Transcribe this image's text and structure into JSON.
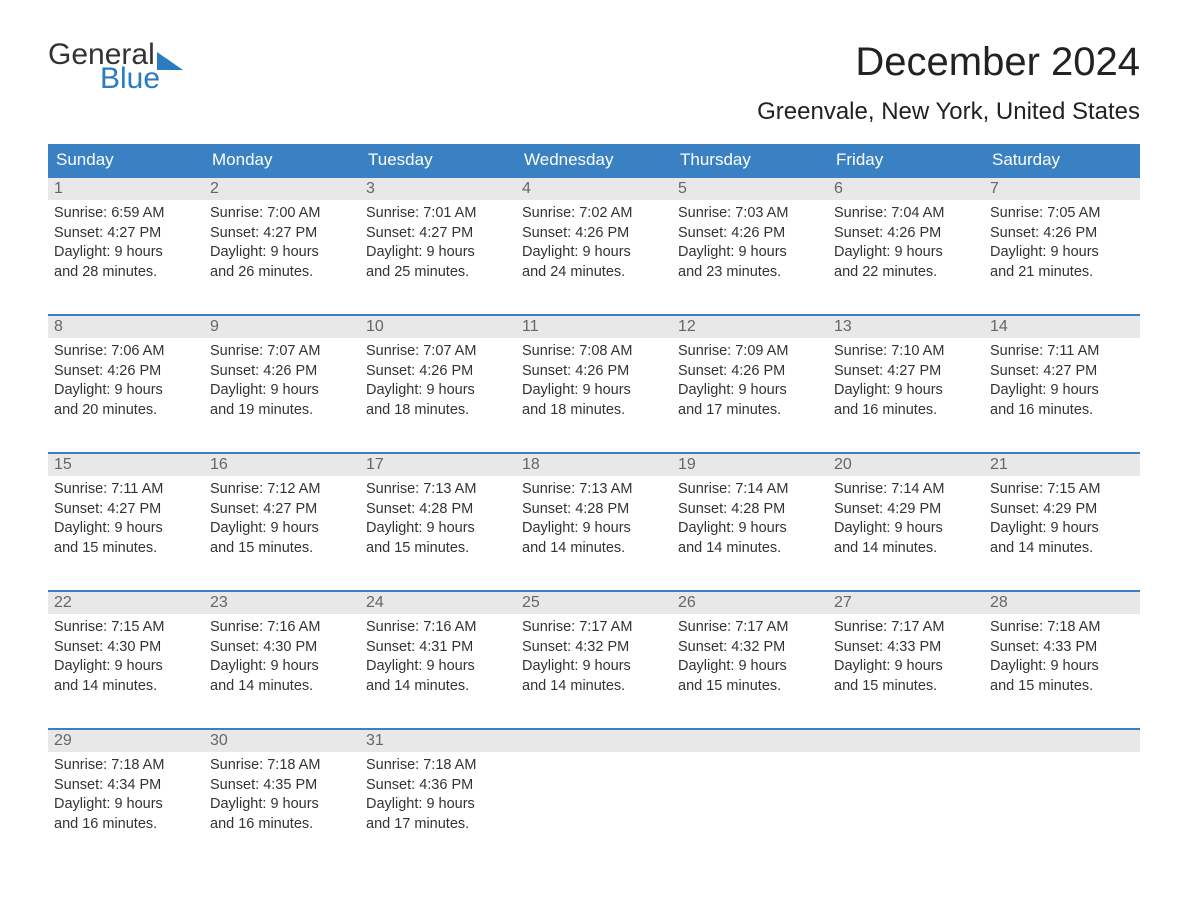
{
  "logo": {
    "word1": "General",
    "word2": "Blue",
    "flag_color": "#2a7bbf"
  },
  "title": "December 2024",
  "subtitle": "Greenvale, New York, United States",
  "colors": {
    "header_bg": "#3a81c4",
    "header_text": "#ffffff",
    "daynum_bg": "#e8e8e8",
    "daynum_text": "#666666",
    "week_border": "#3a81c4",
    "body_text": "#333333",
    "background": "#ffffff"
  },
  "typography": {
    "title_fontsize": 40,
    "subtitle_fontsize": 24,
    "header_fontsize": 17,
    "daynum_fontsize": 16,
    "body_fontsize": 14.5
  },
  "day_headers": [
    "Sunday",
    "Monday",
    "Tuesday",
    "Wednesday",
    "Thursday",
    "Friday",
    "Saturday"
  ],
  "weeks": [
    [
      {
        "n": "1",
        "sunrise": "Sunrise: 6:59 AM",
        "sunset": "Sunset: 4:27 PM",
        "d1": "Daylight: 9 hours",
        "d2": "and 28 minutes."
      },
      {
        "n": "2",
        "sunrise": "Sunrise: 7:00 AM",
        "sunset": "Sunset: 4:27 PM",
        "d1": "Daylight: 9 hours",
        "d2": "and 26 minutes."
      },
      {
        "n": "3",
        "sunrise": "Sunrise: 7:01 AM",
        "sunset": "Sunset: 4:27 PM",
        "d1": "Daylight: 9 hours",
        "d2": "and 25 minutes."
      },
      {
        "n": "4",
        "sunrise": "Sunrise: 7:02 AM",
        "sunset": "Sunset: 4:26 PM",
        "d1": "Daylight: 9 hours",
        "d2": "and 24 minutes."
      },
      {
        "n": "5",
        "sunrise": "Sunrise: 7:03 AM",
        "sunset": "Sunset: 4:26 PM",
        "d1": "Daylight: 9 hours",
        "d2": "and 23 minutes."
      },
      {
        "n": "6",
        "sunrise": "Sunrise: 7:04 AM",
        "sunset": "Sunset: 4:26 PM",
        "d1": "Daylight: 9 hours",
        "d2": "and 22 minutes."
      },
      {
        "n": "7",
        "sunrise": "Sunrise: 7:05 AM",
        "sunset": "Sunset: 4:26 PM",
        "d1": "Daylight: 9 hours",
        "d2": "and 21 minutes."
      }
    ],
    [
      {
        "n": "8",
        "sunrise": "Sunrise: 7:06 AM",
        "sunset": "Sunset: 4:26 PM",
        "d1": "Daylight: 9 hours",
        "d2": "and 20 minutes."
      },
      {
        "n": "9",
        "sunrise": "Sunrise: 7:07 AM",
        "sunset": "Sunset: 4:26 PM",
        "d1": "Daylight: 9 hours",
        "d2": "and 19 minutes."
      },
      {
        "n": "10",
        "sunrise": "Sunrise: 7:07 AM",
        "sunset": "Sunset: 4:26 PM",
        "d1": "Daylight: 9 hours",
        "d2": "and 18 minutes."
      },
      {
        "n": "11",
        "sunrise": "Sunrise: 7:08 AM",
        "sunset": "Sunset: 4:26 PM",
        "d1": "Daylight: 9 hours",
        "d2": "and 18 minutes."
      },
      {
        "n": "12",
        "sunrise": "Sunrise: 7:09 AM",
        "sunset": "Sunset: 4:26 PM",
        "d1": "Daylight: 9 hours",
        "d2": "and 17 minutes."
      },
      {
        "n": "13",
        "sunrise": "Sunrise: 7:10 AM",
        "sunset": "Sunset: 4:27 PM",
        "d1": "Daylight: 9 hours",
        "d2": "and 16 minutes."
      },
      {
        "n": "14",
        "sunrise": "Sunrise: 7:11 AM",
        "sunset": "Sunset: 4:27 PM",
        "d1": "Daylight: 9 hours",
        "d2": "and 16 minutes."
      }
    ],
    [
      {
        "n": "15",
        "sunrise": "Sunrise: 7:11 AM",
        "sunset": "Sunset: 4:27 PM",
        "d1": "Daylight: 9 hours",
        "d2": "and 15 minutes."
      },
      {
        "n": "16",
        "sunrise": "Sunrise: 7:12 AM",
        "sunset": "Sunset: 4:27 PM",
        "d1": "Daylight: 9 hours",
        "d2": "and 15 minutes."
      },
      {
        "n": "17",
        "sunrise": "Sunrise: 7:13 AM",
        "sunset": "Sunset: 4:28 PM",
        "d1": "Daylight: 9 hours",
        "d2": "and 15 minutes."
      },
      {
        "n": "18",
        "sunrise": "Sunrise: 7:13 AM",
        "sunset": "Sunset: 4:28 PM",
        "d1": "Daylight: 9 hours",
        "d2": "and 14 minutes."
      },
      {
        "n": "19",
        "sunrise": "Sunrise: 7:14 AM",
        "sunset": "Sunset: 4:28 PM",
        "d1": "Daylight: 9 hours",
        "d2": "and 14 minutes."
      },
      {
        "n": "20",
        "sunrise": "Sunrise: 7:14 AM",
        "sunset": "Sunset: 4:29 PM",
        "d1": "Daylight: 9 hours",
        "d2": "and 14 minutes."
      },
      {
        "n": "21",
        "sunrise": "Sunrise: 7:15 AM",
        "sunset": "Sunset: 4:29 PM",
        "d1": "Daylight: 9 hours",
        "d2": "and 14 minutes."
      }
    ],
    [
      {
        "n": "22",
        "sunrise": "Sunrise: 7:15 AM",
        "sunset": "Sunset: 4:30 PM",
        "d1": "Daylight: 9 hours",
        "d2": "and 14 minutes."
      },
      {
        "n": "23",
        "sunrise": "Sunrise: 7:16 AM",
        "sunset": "Sunset: 4:30 PM",
        "d1": "Daylight: 9 hours",
        "d2": "and 14 minutes."
      },
      {
        "n": "24",
        "sunrise": "Sunrise: 7:16 AM",
        "sunset": "Sunset: 4:31 PM",
        "d1": "Daylight: 9 hours",
        "d2": "and 14 minutes."
      },
      {
        "n": "25",
        "sunrise": "Sunrise: 7:17 AM",
        "sunset": "Sunset: 4:32 PM",
        "d1": "Daylight: 9 hours",
        "d2": "and 14 minutes."
      },
      {
        "n": "26",
        "sunrise": "Sunrise: 7:17 AM",
        "sunset": "Sunset: 4:32 PM",
        "d1": "Daylight: 9 hours",
        "d2": "and 15 minutes."
      },
      {
        "n": "27",
        "sunrise": "Sunrise: 7:17 AM",
        "sunset": "Sunset: 4:33 PM",
        "d1": "Daylight: 9 hours",
        "d2": "and 15 minutes."
      },
      {
        "n": "28",
        "sunrise": "Sunrise: 7:18 AM",
        "sunset": "Sunset: 4:33 PM",
        "d1": "Daylight: 9 hours",
        "d2": "and 15 minutes."
      }
    ],
    [
      {
        "n": "29",
        "sunrise": "Sunrise: 7:18 AM",
        "sunset": "Sunset: 4:34 PM",
        "d1": "Daylight: 9 hours",
        "d2": "and 16 minutes."
      },
      {
        "n": "30",
        "sunrise": "Sunrise: 7:18 AM",
        "sunset": "Sunset: 4:35 PM",
        "d1": "Daylight: 9 hours",
        "d2": "and 16 minutes."
      },
      {
        "n": "31",
        "sunrise": "Sunrise: 7:18 AM",
        "sunset": "Sunset: 4:36 PM",
        "d1": "Daylight: 9 hours",
        "d2": "and 17 minutes."
      },
      {
        "empty": true
      },
      {
        "empty": true
      },
      {
        "empty": true
      },
      {
        "empty": true
      }
    ]
  ]
}
